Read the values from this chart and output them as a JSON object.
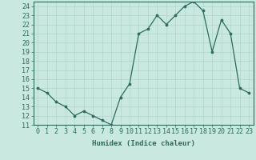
{
  "title": "",
  "xlabel": "Humidex (Indice chaleur)",
  "x": [
    0,
    1,
    2,
    3,
    4,
    5,
    6,
    7,
    8,
    9,
    10,
    11,
    12,
    13,
    14,
    15,
    16,
    17,
    18,
    19,
    20,
    21,
    22,
    23
  ],
  "y": [
    15,
    14.5,
    13.5,
    13,
    12,
    12.5,
    12,
    11.5,
    11,
    14,
    15.5,
    21,
    21.5,
    23,
    22,
    23,
    24,
    24.5,
    23.5,
    19,
    22.5,
    21,
    15,
    14.5
  ],
  "line_color": "#2e6b5e",
  "marker_color": "#2e6b5e",
  "bg_color": "#c8e8e0",
  "grid_color": "#b0d4cc",
  "axis_color": "#2e6b5e",
  "spine_color": "#2e6b5e",
  "xlim": [
    -0.5,
    23.5
  ],
  "ylim": [
    11,
    24.5
  ],
  "yticks": [
    11,
    12,
    13,
    14,
    15,
    16,
    17,
    18,
    19,
    20,
    21,
    22,
    23,
    24
  ],
  "xticks": [
    0,
    1,
    2,
    3,
    4,
    5,
    6,
    7,
    8,
    9,
    10,
    11,
    12,
    13,
    14,
    15,
    16,
    17,
    18,
    19,
    20,
    21,
    22,
    23
  ],
  "xlabel_fontsize": 6.5,
  "tick_fontsize": 6.0
}
